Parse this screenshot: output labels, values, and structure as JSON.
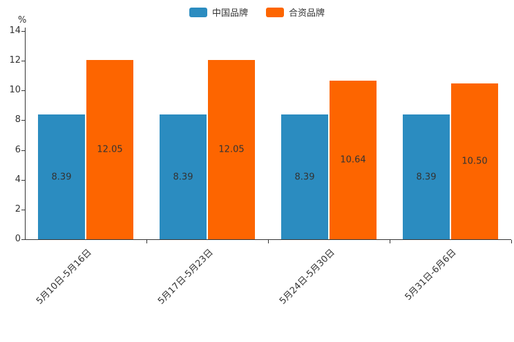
{
  "chart_data": {
    "type": "bar",
    "categories": [
      "5月10日-5月16日",
      "5月17日-5月23日",
      "5月24日-5月30日",
      "5月31日-6月6日"
    ],
    "series": [
      {
        "name": "中国品牌",
        "color": "#2b8cc0",
        "values": [
          8.39,
          8.39,
          8.39,
          8.39
        ]
      },
      {
        "name": "合资品牌",
        "color": "#fd6500",
        "values": [
          12.05,
          12.05,
          10.64,
          10.5
        ]
      }
    ],
    "value_labels": [
      [
        "8.39",
        "8.39",
        "8.39",
        "8.39"
      ],
      [
        "12.05",
        "12.05",
        "10.64",
        "10.50"
      ]
    ],
    "title": "",
    "xlabel": "",
    "ylabel": "%",
    "ylim": [
      0,
      14
    ],
    "yticks": [
      0,
      2,
      4,
      6,
      8,
      10,
      12,
      14
    ],
    "grid": false,
    "legend_position": "top-center"
  }
}
